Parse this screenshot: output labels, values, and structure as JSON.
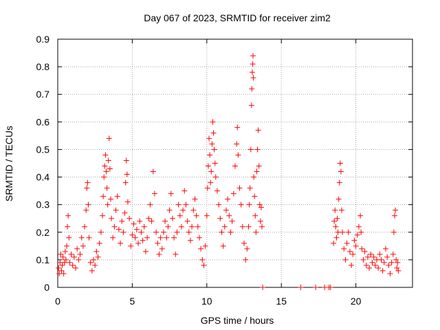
{
  "chart_data": {
    "type": "scatter",
    "title": "Day 067 of 2023, SRMTID for receiver zim2",
    "xlabel": "GPS time / hours",
    "ylabel": "SRMTID / TECUs",
    "xlim": [
      0,
      23.8
    ],
    "ylim": [
      0,
      0.9
    ],
    "xticks": [
      0,
      5,
      10,
      15,
      20
    ],
    "xtick_labels": [
      "0",
      "5",
      "10",
      "15",
      "20"
    ],
    "yticks": [
      0,
      0.1,
      0.2,
      0.3,
      0.4,
      0.5,
      0.6,
      0.7,
      0.8,
      0.9
    ],
    "ytick_labels": [
      "0",
      "0.1",
      "0.2",
      "0.3",
      "0.4",
      "0.5",
      "0.6",
      "0.7",
      "0.8",
      "0.9"
    ],
    "grid": true,
    "marker": "+",
    "marker_color": "#ff0000",
    "series": [
      {
        "name": "SRMTID",
        "points": [
          [
            0.05,
            0.07
          ],
          [
            0.1,
            0.05
          ],
          [
            0.15,
            0.09
          ],
          [
            0.2,
            0.12
          ],
          [
            0.25,
            0.06
          ],
          [
            0.3,
            0.08
          ],
          [
            0.35,
            0.11
          ],
          [
            0.4,
            0.05
          ],
          [
            0.45,
            0.09
          ],
          [
            0.5,
            0.13
          ],
          [
            0.55,
            0.1
          ],
          [
            0.6,
            0.15
          ],
          [
            0.65,
            0.22
          ],
          [
            0.7,
            0.26
          ],
          [
            0.75,
            0.18
          ],
          [
            0.8,
            0.09
          ],
          [
            0.9,
            0.12
          ],
          [
            1.0,
            0.08
          ],
          [
            1.1,
            0.11
          ],
          [
            1.2,
            0.07
          ],
          [
            1.3,
            0.14
          ],
          [
            1.4,
            0.1
          ],
          [
            1.5,
            0.12
          ],
          [
            1.6,
            0.18
          ],
          [
            1.7,
            0.15
          ],
          [
            1.8,
            0.22
          ],
          [
            1.9,
            0.28
          ],
          [
            1.95,
            0.36
          ],
          [
            2.0,
            0.38
          ],
          [
            2.05,
            0.3
          ],
          [
            2.1,
            0.18
          ],
          [
            2.2,
            0.09
          ],
          [
            2.3,
            0.06
          ],
          [
            2.4,
            0.1
          ],
          [
            2.5,
            0.08
          ],
          [
            2.6,
            0.13
          ],
          [
            2.7,
            0.11
          ],
          [
            2.8,
            0.16
          ],
          [
            2.9,
            0.2
          ],
          [
            3.0,
            0.26
          ],
          [
            3.05,
            0.33
          ],
          [
            3.1,
            0.4
          ],
          [
            3.15,
            0.44
          ],
          [
            3.2,
            0.48
          ],
          [
            3.25,
            0.42
          ],
          [
            3.3,
            0.36
          ],
          [
            3.35,
            0.3
          ],
          [
            3.4,
            0.46
          ],
          [
            3.45,
            0.54
          ],
          [
            3.5,
            0.43
          ],
          [
            3.55,
            0.32
          ],
          [
            3.6,
            0.25
          ],
          [
            3.7,
            0.18
          ],
          [
            3.8,
            0.22
          ],
          [
            3.9,
            0.28
          ],
          [
            4.0,
            0.33
          ],
          [
            4.1,
            0.21
          ],
          [
            4.2,
            0.16
          ],
          [
            4.3,
            0.24
          ],
          [
            4.4,
            0.2
          ],
          [
            4.5,
            0.27
          ],
          [
            4.55,
            0.38
          ],
          [
            4.6,
            0.46
          ],
          [
            4.65,
            0.41
          ],
          [
            4.7,
            0.31
          ],
          [
            4.8,
            0.25
          ],
          [
            4.9,
            0.15
          ],
          [
            5.0,
            0.19
          ],
          [
            5.1,
            0.23
          ],
          [
            5.2,
            0.18
          ],
          [
            5.3,
            0.21
          ],
          [
            5.4,
            0.16
          ],
          [
            5.5,
            0.24
          ],
          [
            5.6,
            0.2
          ],
          [
            5.7,
            0.17
          ],
          [
            5.8,
            0.22
          ],
          [
            5.9,
            0.13
          ],
          [
            6.0,
            0.18
          ],
          [
            6.1,
            0.25
          ],
          [
            6.2,
            0.3
          ],
          [
            6.3,
            0.24
          ],
          [
            6.4,
            0.42
          ],
          [
            6.5,
            0.34
          ],
          [
            6.6,
            0.2
          ],
          [
            6.7,
            0.16
          ],
          [
            6.8,
            0.12
          ],
          [
            6.9,
            0.18
          ],
          [
            7.0,
            0.14
          ],
          [
            7.1,
            0.2
          ],
          [
            7.2,
            0.24
          ],
          [
            7.3,
            0.18
          ],
          [
            7.4,
            0.22
          ],
          [
            7.5,
            0.28
          ],
          [
            7.6,
            0.34
          ],
          [
            7.7,
            0.25
          ],
          [
            7.8,
            0.18
          ],
          [
            7.9,
            0.12
          ],
          [
            8.0,
            0.2
          ],
          [
            8.1,
            0.3
          ],
          [
            8.2,
            0.26
          ],
          [
            8.3,
            0.22
          ],
          [
            8.4,
            0.28
          ],
          [
            8.5,
            0.35
          ],
          [
            8.6,
            0.3
          ],
          [
            8.7,
            0.24
          ],
          [
            8.8,
            0.2
          ],
          [
            8.9,
            0.17
          ],
          [
            9.0,
            0.22
          ],
          [
            9.1,
            0.28
          ],
          [
            9.2,
            0.32
          ],
          [
            9.3,
            0.26
          ],
          [
            9.4,
            0.22
          ],
          [
            9.5,
            0.18
          ],
          [
            9.6,
            0.14
          ],
          [
            9.7,
            0.1
          ],
          [
            9.8,
            0.08
          ],
          [
            9.9,
            0.15
          ],
          [
            10.0,
            0.26
          ],
          [
            10.05,
            0.36
          ],
          [
            10.1,
            0.44
          ],
          [
            10.15,
            0.54
          ],
          [
            10.2,
            0.48
          ],
          [
            10.25,
            0.38
          ],
          [
            10.3,
            0.42
          ],
          [
            10.35,
            0.52
          ],
          [
            10.4,
            0.6
          ],
          [
            10.45,
            0.56
          ],
          [
            10.5,
            0.5
          ],
          [
            10.55,
            0.45
          ],
          [
            10.6,
            0.4
          ],
          [
            10.7,
            0.35
          ],
          [
            10.8,
            0.3
          ],
          [
            10.9,
            0.25
          ],
          [
            11.0,
            0.2
          ],
          [
            11.1,
            0.15
          ],
          [
            11.2,
            0.22
          ],
          [
            11.3,
            0.28
          ],
          [
            11.4,
            0.32
          ],
          [
            11.5,
            0.26
          ],
          [
            11.6,
            0.2
          ],
          [
            11.7,
            0.24
          ],
          [
            11.8,
            0.34
          ],
          [
            11.9,
            0.44
          ],
          [
            12.0,
            0.52
          ],
          [
            12.05,
            0.58
          ],
          [
            12.1,
            0.48
          ],
          [
            12.2,
            0.36
          ],
          [
            12.3,
            0.3
          ],
          [
            12.4,
            0.22
          ],
          [
            12.5,
            0.16
          ],
          [
            12.6,
            0.1
          ],
          [
            12.7,
            0.14
          ],
          [
            12.8,
            0.22
          ],
          [
            12.85,
            0.3
          ],
          [
            12.9,
            0.36
          ],
          [
            12.95,
            0.5
          ],
          [
            13.0,
            0.66
          ],
          [
            13.02,
            0.72
          ],
          [
            13.05,
            0.78
          ],
          [
            13.08,
            0.81
          ],
          [
            13.1,
            0.84
          ],
          [
            13.12,
            0.76
          ],
          [
            13.15,
            0.4
          ],
          [
            13.2,
            0.33
          ],
          [
            13.25,
            0.26
          ],
          [
            13.3,
            0.2
          ],
          [
            13.35,
            0.42
          ],
          [
            13.4,
            0.5
          ],
          [
            13.45,
            0.57
          ],
          [
            13.5,
            0.44
          ],
          [
            13.55,
            0.3
          ],
          [
            13.6,
            0.24
          ],
          [
            13.65,
            0.29
          ],
          [
            13.7,
            0.22
          ],
          [
            13.75,
            0.0
          ],
          [
            16.3,
            0.0
          ],
          [
            17.3,
            0.0
          ],
          [
            17.9,
            0.0
          ],
          [
            18.2,
            0.0
          ],
          [
            18.3,
            0.0
          ],
          [
            18.5,
            0.16
          ],
          [
            18.55,
            0.24
          ],
          [
            18.6,
            0.28
          ],
          [
            18.65,
            0.22
          ],
          [
            18.7,
            0.18
          ],
          [
            18.75,
            0.25
          ],
          [
            18.8,
            0.2
          ],
          [
            18.85,
            0.32
          ],
          [
            18.9,
            0.38
          ],
          [
            18.95,
            0.45
          ],
          [
            19.0,
            0.42
          ],
          [
            19.05,
            0.28
          ],
          [
            19.1,
            0.2
          ],
          [
            19.2,
            0.14
          ],
          [
            19.3,
            0.1
          ],
          [
            19.4,
            0.16
          ],
          [
            19.5,
            0.2
          ],
          [
            19.6,
            0.13
          ],
          [
            19.7,
            0.08
          ],
          [
            19.8,
            0.12
          ],
          [
            19.9,
            0.17
          ],
          [
            20.0,
            0.15
          ],
          [
            20.1,
            0.19
          ],
          [
            20.2,
            0.22
          ],
          [
            20.3,
            0.26
          ],
          [
            20.35,
            0.2
          ],
          [
            20.4,
            0.14
          ],
          [
            20.5,
            0.1
          ],
          [
            20.6,
            0.13
          ],
          [
            20.7,
            0.08
          ],
          [
            20.8,
            0.11
          ],
          [
            20.9,
            0.07
          ],
          [
            21.0,
            0.12
          ],
          [
            21.1,
            0.09
          ],
          [
            21.2,
            0.11
          ],
          [
            21.3,
            0.08
          ],
          [
            21.4,
            0.1
          ],
          [
            21.5,
            0.07
          ],
          [
            21.6,
            0.12
          ],
          [
            21.7,
            0.1
          ],
          [
            21.8,
            0.06
          ],
          [
            21.9,
            0.09
          ],
          [
            22.0,
            0.14
          ],
          [
            22.1,
            0.11
          ],
          [
            22.2,
            0.08
          ],
          [
            22.3,
            0.05
          ],
          [
            22.4,
            0.09
          ],
          [
            22.5,
            0.12
          ],
          [
            22.55,
            0.2
          ],
          [
            22.6,
            0.26
          ],
          [
            22.65,
            0.28
          ],
          [
            22.7,
            0.1
          ],
          [
            22.75,
            0.07
          ],
          [
            22.8,
            0.09
          ],
          [
            22.85,
            0.06
          ]
        ]
      }
    ]
  }
}
